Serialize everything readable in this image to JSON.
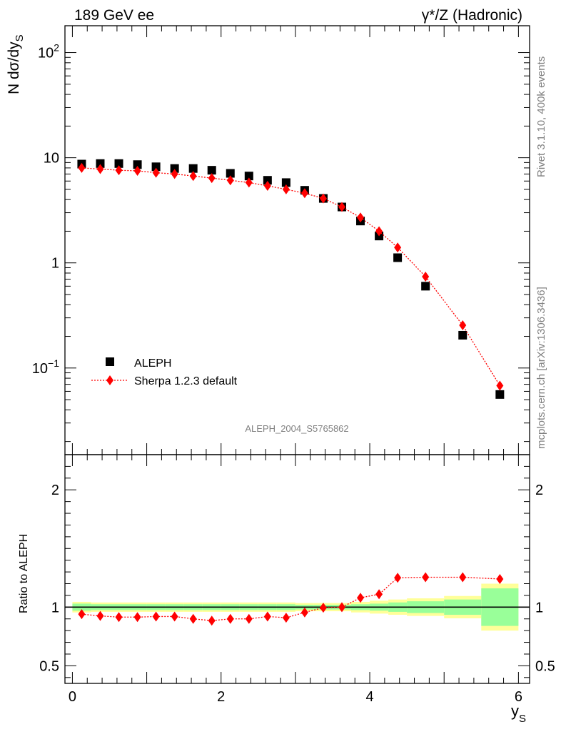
{
  "header": {
    "left_label": "189 GeV ee",
    "right_label": "γ*/Z (Hadronic)"
  },
  "side_labels": {
    "rivet": "Rivet 3.1.10,  400k events",
    "mcplots": "mcplots.cern.ch [arXiv:1306.3436]"
  },
  "chart_data": [
    {
      "type": "scatter",
      "panel": "main",
      "title": "189 GeV ee",
      "annotation": "ALEPH_2004_S5765862",
      "ylabel": "N dσ/dy_S",
      "xlabel": "y_S",
      "ylog": true,
      "ylim": [
        0.015,
        180
      ],
      "xlim": [
        -0.1,
        6.15
      ],
      "yticks": [
        {
          "value": 0.1,
          "label": "10^-1"
        },
        {
          "value": 1,
          "label": "1"
        },
        {
          "value": 10,
          "label": "10"
        },
        {
          "value": 100,
          "label": "10^2"
        }
      ],
      "legend": {
        "placement": "lower-left",
        "entries": [
          "ALEPH",
          "Sherpa 1.2.3 default"
        ]
      },
      "series": [
        {
          "name": "ALEPH",
          "marker": "square",
          "color": "#000000",
          "x": [
            0.125,
            0.375,
            0.625,
            0.875,
            1.125,
            1.375,
            1.625,
            1.875,
            2.125,
            2.375,
            2.625,
            2.875,
            3.125,
            3.375,
            3.625,
            3.875,
            4.125,
            4.375,
            4.75,
            5.25,
            5.75
          ],
          "y": [
            8.7,
            8.8,
            8.8,
            8.6,
            8.2,
            7.9,
            7.9,
            7.6,
            7.1,
            6.7,
            6.1,
            5.8,
            4.9,
            4.1,
            3.4,
            2.5,
            1.8,
            1.12,
            0.6,
            0.205,
            0.056
          ]
        },
        {
          "name": "Sherpa 1.2.3 default",
          "marker": "diamond",
          "color": "#ff0000",
          "line": "dotted",
          "x": [
            0.125,
            0.375,
            0.625,
            0.875,
            1.125,
            1.375,
            1.625,
            1.875,
            2.125,
            2.375,
            2.625,
            2.875,
            3.125,
            3.375,
            3.625,
            3.875,
            4.125,
            4.375,
            4.75,
            5.25,
            5.75
          ],
          "y": [
            8.0,
            7.8,
            7.6,
            7.5,
            7.2,
            7.0,
            6.7,
            6.4,
            6.1,
            5.8,
            5.4,
            5.0,
            4.6,
            4.1,
            3.4,
            2.7,
            2.0,
            1.4,
            0.74,
            0.255,
            0.068
          ]
        }
      ]
    },
    {
      "type": "scatter",
      "panel": "ratio",
      "ylabel": "Ratio to ALEPH",
      "xlabel": "y_S",
      "ylim": [
        0.35,
        2.3
      ],
      "xlim": [
        -0.1,
        6.15
      ],
      "xticks": [
        0,
        2,
        4,
        6
      ],
      "yticks": [
        {
          "value": 0.5,
          "label": "0.5"
        },
        {
          "value": 1,
          "label": "1"
        },
        {
          "value": 2,
          "label": "2"
        }
      ],
      "reference_line": 1,
      "bands": {
        "edges": [
          0,
          0.25,
          0.5,
          0.75,
          1.0,
          1.25,
          1.5,
          1.75,
          2.0,
          2.25,
          2.5,
          2.75,
          3.0,
          3.25,
          3.5,
          3.75,
          4.0,
          4.25,
          4.5,
          5.0,
          5.5,
          6.0
        ],
        "inner_color": "#99ff99",
        "outer_color": "#ffff99",
        "inner_half_width": [
          0.03,
          0.025,
          0.025,
          0.025,
          0.025,
          0.025,
          0.025,
          0.025,
          0.025,
          0.025,
          0.025,
          0.025,
          0.02,
          0.02,
          0.02,
          0.025,
          0.03,
          0.04,
          0.05,
          0.065,
          0.16
        ],
        "outer_half_width": [
          0.045,
          0.04,
          0.04,
          0.04,
          0.04,
          0.04,
          0.04,
          0.04,
          0.04,
          0.04,
          0.04,
          0.04,
          0.035,
          0.035,
          0.035,
          0.045,
          0.055,
          0.065,
          0.075,
          0.095,
          0.2
        ]
      },
      "series": [
        {
          "name": "Sherpa 1.2.3 default",
          "marker": "diamond",
          "color": "#ff0000",
          "line": "dotted",
          "x": [
            0.125,
            0.375,
            0.625,
            0.875,
            1.125,
            1.375,
            1.625,
            1.875,
            2.125,
            2.375,
            2.625,
            2.875,
            3.125,
            3.375,
            3.625,
            3.875,
            4.125,
            4.375,
            4.75,
            5.25,
            5.75
          ],
          "y": [
            0.94,
            0.925,
            0.915,
            0.915,
            0.92,
            0.92,
            0.9,
            0.885,
            0.9,
            0.9,
            0.92,
            0.91,
            0.955,
            0.995,
            1.0,
            1.08,
            1.11,
            1.25,
            1.255,
            1.255,
            1.24
          ]
        }
      ]
    }
  ]
}
